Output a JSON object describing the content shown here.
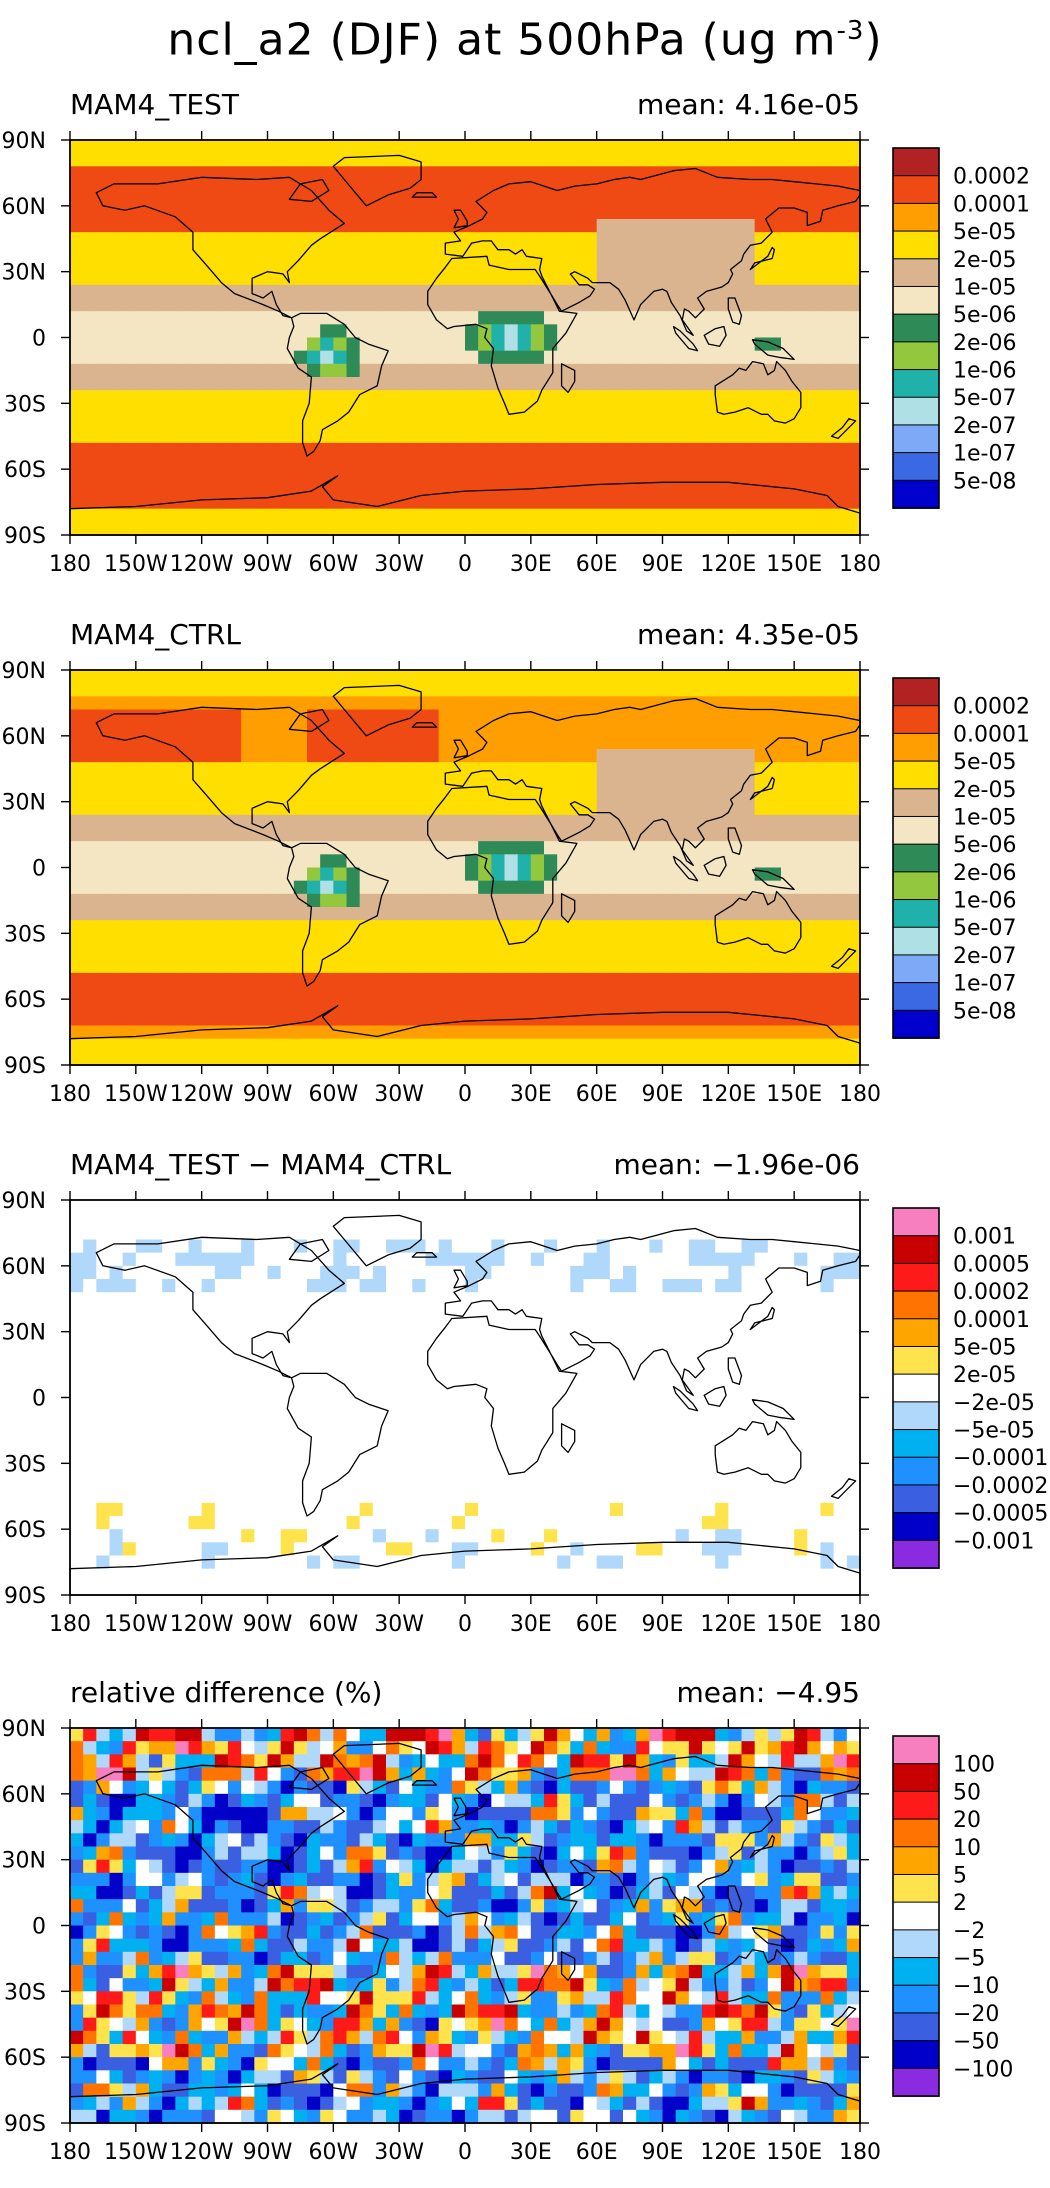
{
  "title": {
    "main": "ncl_a2 (DJF) at 500hPa (ug m",
    "exp": "-3",
    "close": ")"
  },
  "axes": {
    "x_ticks": [
      "180",
      "150W",
      "120W",
      "90W",
      "60W",
      "30W",
      "0",
      "30E",
      "60E",
      "90E",
      "120E",
      "150E",
      "180"
    ],
    "y_ticks": [
      "90N",
      "60N",
      "30N",
      "0",
      "30S",
      "60S",
      "90S"
    ]
  },
  "chart_data": [
    {
      "type": "heatmap",
      "id": "test",
      "left_title": "MAM4_TEST",
      "right_title": "mean: 4.16e-05",
      "mean": 4.16e-05,
      "levels": [
        "0.0002",
        "0.0001",
        "5e-05",
        "2e-05",
        "1e-05",
        "5e-06",
        "2e-06",
        "1e-06",
        "5e-07",
        "2e-07",
        "1e-07",
        "5e-08"
      ],
      "colors": [
        "#b22222",
        "#f04a14",
        "#ff9e00",
        "#ffdf00",
        "#d9b48f",
        "#f4e6c3",
        "#2e8b57",
        "#93c83e",
        "#20b2aa",
        "#afe0e6",
        "#7da9f7",
        "#3b68e3",
        "#0000cd"
      ],
      "field": "conc"
    },
    {
      "type": "heatmap",
      "id": "ctrl",
      "left_title": "MAM4_CTRL",
      "right_title": "mean: 4.35e-05",
      "mean": 4.35e-05,
      "levels": [
        "0.0002",
        "0.0001",
        "5e-05",
        "2e-05",
        "1e-05",
        "5e-06",
        "2e-06",
        "1e-06",
        "5e-07",
        "2e-07",
        "1e-07",
        "5e-08"
      ],
      "colors": [
        "#b22222",
        "#f04a14",
        "#ff9e00",
        "#ffdf00",
        "#d9b48f",
        "#f4e6c3",
        "#2e8b57",
        "#93c83e",
        "#20b2aa",
        "#afe0e6",
        "#7da9f7",
        "#3b68e3",
        "#0000cd"
      ],
      "field": "conc"
    },
    {
      "type": "heatmap",
      "id": "diff",
      "left_title": "MAM4_TEST − MAM4_CTRL",
      "right_title": "mean: −1.96e-06",
      "mean": -1.96e-06,
      "levels": [
        "0.001",
        "0.0005",
        "0.0002",
        "0.0001",
        "5e-05",
        "2e-05",
        "−2e-05",
        "−5e-05",
        "−0.0001",
        "−0.0002",
        "−0.0005",
        "−0.001"
      ],
      "colors": [
        "#f77fbf",
        "#c80000",
        "#ff1a1a",
        "#ff7400",
        "#ffa500",
        "#ffe34d",
        "#ffffff",
        "#b0d8fb",
        "#00b0f0",
        "#1e90ff",
        "#3a5fe0",
        "#0000c8",
        "#8a2be2"
      ],
      "field": "diff"
    },
    {
      "type": "heatmap",
      "id": "rel",
      "left_title": "relative difference (%)",
      "right_title": "mean: −4.95",
      "mean": -4.95,
      "levels": [
        "100",
        "50",
        "20",
        "10",
        "5",
        "2",
        "−2",
        "−5",
        "−10",
        "−20",
        "−50",
        "−100"
      ],
      "colors": [
        "#f77fbf",
        "#c80000",
        "#ff1a1a",
        "#ff7400",
        "#ffa500",
        "#ffe34d",
        "#ffffff",
        "#b0d8fb",
        "#00b0f0",
        "#1e90ff",
        "#3a5fe0",
        "#0000c8",
        "#8a2be2"
      ],
      "field": "rel"
    }
  ]
}
